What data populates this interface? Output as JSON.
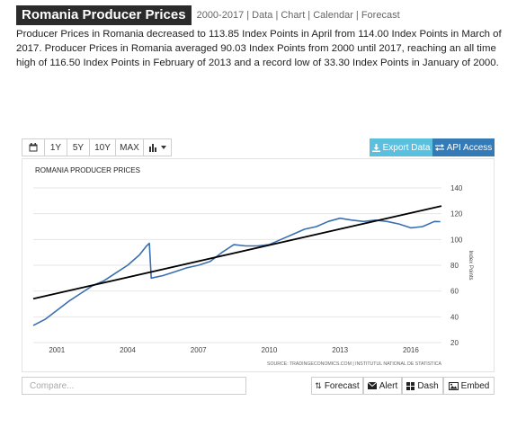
{
  "header": {
    "title": "Romania Producer Prices",
    "meta": "2000-2017 | Data | Chart | Calendar | Forecast"
  },
  "description": "Producer Prices in Romania decreased to 113.85 Index Points in April from 114.00 Index Points in March of 2017. Producer Prices in Romania averaged 90.03 Index Points from 2000 until 2017, reaching an all time high of 116.50 Index Points in February of 2013 and a record low of 33.30 Index Points in January of 2000.",
  "toolbar": {
    "calendar_icon": "calendar-icon",
    "range_1y": "1Y",
    "range_5y": "5Y",
    "range_10y": "10Y",
    "range_max": "MAX",
    "chart_type_icon": "bar-chart-icon",
    "export_label": "Export Data",
    "api_label": "API Access",
    "colors": {
      "export": "#5bc0de",
      "api": "#337ab7"
    }
  },
  "chart_data": {
    "type": "line",
    "title": "ROMANIA PRODUCER PRICES",
    "ylabel": "Index Points",
    "source": "SOURCE: TRADINGECONOMICS.COM | INSTITUTUL NATIONAL DE STATISTICA",
    "xlim": [
      2000.0,
      2017.3
    ],
    "ylim": [
      20,
      140
    ],
    "x_ticks": [
      2001,
      2004,
      2007,
      2010,
      2013,
      2016
    ],
    "y_ticks": [
      20,
      40,
      60,
      80,
      100,
      120,
      140
    ],
    "grid": "horizontal",
    "series": [
      {
        "color": "#3a6fb0",
        "x": [
          2000.0,
          2000.5,
          2001.0,
          2001.5,
          2002.0,
          2002.5,
          2003.0,
          2003.5,
          2004.0,
          2004.5,
          2004.8,
          2004.92,
          2005.0,
          2005.5,
          2006.0,
          2006.5,
          2007.0,
          2007.5,
          2008.0,
          2008.5,
          2009.0,
          2009.5,
          2010.0,
          2010.5,
          2011.0,
          2011.5,
          2012.0,
          2012.5,
          2013.0,
          2013.5,
          2014.0,
          2014.5,
          2015.0,
          2015.5,
          2016.0,
          2016.5,
          2017.0,
          2017.25
        ],
        "y": [
          33.3,
          38,
          45,
          52,
          58,
          64,
          68,
          74,
          80,
          88,
          95,
          97,
          70,
          72,
          75,
          78,
          80,
          83,
          90,
          96,
          95,
          95,
          96,
          100,
          104,
          108,
          110,
          114,
          116.5,
          115,
          114,
          115,
          114,
          112,
          109,
          110,
          114,
          113.85
        ]
      }
    ],
    "trendline": {
      "color": "#000000",
      "x": [
        2000.0,
        2017.3
      ],
      "y": [
        54,
        126
      ]
    }
  },
  "footer": {
    "compare_placeholder": "Compare...",
    "forecast_label": "Forecast",
    "alert_label": "Alert",
    "dash_label": "Dash",
    "embed_label": "Embed"
  }
}
